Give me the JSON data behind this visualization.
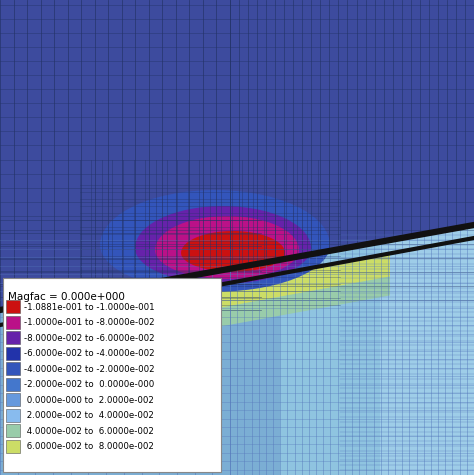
{
  "magfac_label": "Magfac = 0.000e+000",
  "legend_entries": [
    {
      "color": "#cc1111",
      "label": "-1.0881e-001 to -1.0000e-001"
    },
    {
      "color": "#bb1188",
      "label": "-1.0000e-001 to -8.0000e-002"
    },
    {
      "color": "#6622aa",
      "label": "-8.0000e-002 to -6.0000e-002"
    },
    {
      "color": "#2233aa",
      "label": "-6.0000e-002 to -4.0000e-002"
    },
    {
      "color": "#3355bb",
      "label": "-4.0000e-002 to -2.0000e-002"
    },
    {
      "color": "#4477cc",
      "label": "-2.0000e-002 to  0.0000e-000"
    },
    {
      "color": "#6699dd",
      "label": " 0.0000e-000 to  2.0000e-002"
    },
    {
      "color": "#88bbee",
      "label": " 2.0000e-002 to  4.0000e-002"
    },
    {
      "color": "#99ccaa",
      "label": " 4.0000e-002 to  6.0000e-002"
    },
    {
      "color": "#ccdd66",
      "label": " 6.0000e-002 to  8.0000e-002"
    }
  ],
  "upper_bg": "#3a4899",
  "upper_bg_right": "#3a4899",
  "lower_left_bg": "#4466bb",
  "lower_right_bg": "#88bbdd",
  "fault_color": "#111111",
  "grid_color_dark": "#2233770",
  "grid_color_light": "#6688bb"
}
